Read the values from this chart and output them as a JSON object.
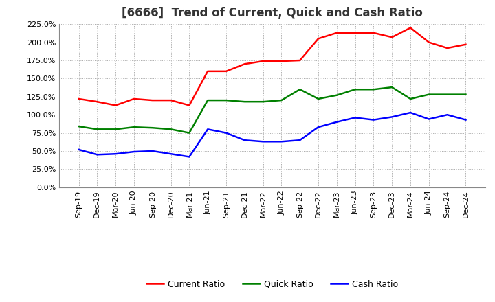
{
  "title": "[6666]  Trend of Current, Quick and Cash Ratio",
  "x_labels": [
    "Sep-19",
    "Dec-19",
    "Mar-20",
    "Jun-20",
    "Sep-20",
    "Dec-20",
    "Mar-21",
    "Jun-21",
    "Sep-21",
    "Dec-21",
    "Mar-22",
    "Jun-22",
    "Sep-22",
    "Dec-22",
    "Mar-23",
    "Jun-23",
    "Sep-23",
    "Dec-23",
    "Mar-24",
    "Jun-24",
    "Sep-24",
    "Dec-24"
  ],
  "current_ratio": [
    122,
    118,
    113,
    122,
    120,
    120,
    113,
    160,
    160,
    170,
    174,
    174,
    175,
    205,
    213,
    213,
    213,
    207,
    220,
    200,
    192,
    197
  ],
  "quick_ratio": [
    84,
    80,
    80,
    83,
    82,
    80,
    75,
    120,
    120,
    118,
    118,
    120,
    135,
    122,
    127,
    135,
    135,
    138,
    122,
    128,
    128,
    128
  ],
  "cash_ratio": [
    52,
    45,
    46,
    49,
    50,
    46,
    42,
    80,
    75,
    65,
    63,
    63,
    65,
    83,
    90,
    96,
    93,
    97,
    103,
    94,
    100,
    93
  ],
  "current_color": "#ff0000",
  "quick_color": "#008000",
  "cash_color": "#0000ff",
  "ylim": [
    0,
    225
  ],
  "yticks": [
    0,
    25,
    50,
    75,
    100,
    125,
    150,
    175,
    200,
    225
  ],
  "background_color": "#ffffff",
  "plot_bg_color": "#ffffff",
  "grid_color": "#aaaaaa",
  "title_fontsize": 12,
  "tick_fontsize": 8,
  "legend_fontsize": 9,
  "line_width": 1.8
}
